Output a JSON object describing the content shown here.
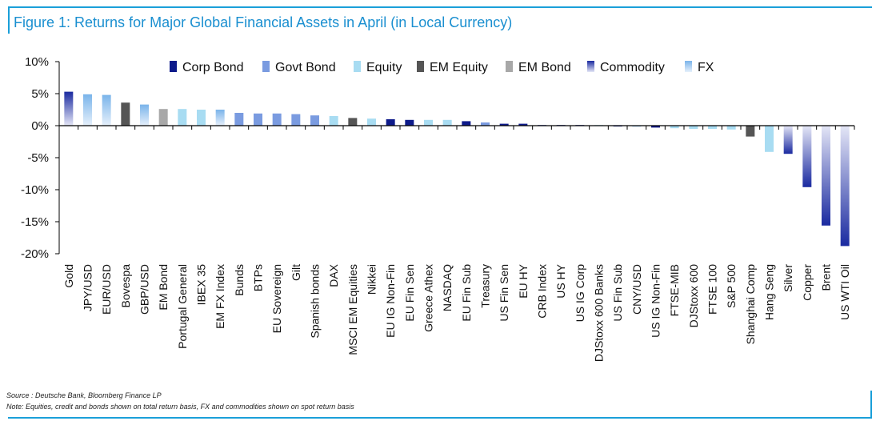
{
  "title": "Figure 1: Returns for Major Global Financial Assets in April (in Local Currency)",
  "source": "Source : Deutsche Bank, Bloomberg Finance LP",
  "note": "Note: Equities, credit and bonds shown on total return basis, FX and commodities shown on spot return basis",
  "colors": {
    "Corp Bond": "#0d1a8a",
    "Govt Bond": "#7a9be0",
    "Equity": "#a8dcf2",
    "EM Equity": "#555555",
    "EM Bond": "#a8a8a8",
    "Commodity": "#1a2aa0",
    "FX": "#7ab4ea"
  },
  "chart_data": {
    "type": "bar",
    "title": "Figure 1: Returns for Major Global Financial Assets in April (in Local Currency)",
    "ylim": [
      -20,
      10
    ],
    "yticks": [
      10,
      5,
      0,
      -5,
      -10,
      -15,
      -20
    ],
    "ytick_labels": [
      "10%",
      "5%",
      "0%",
      "-5%",
      "-10%",
      "-15%",
      "-20%"
    ],
    "legend": [
      "Corp Bond",
      "Govt Bond",
      "Equity",
      "EM Equity",
      "EM Bond",
      "Commodity",
      "FX"
    ],
    "legend_position": "top",
    "categories": [
      "Gold",
      "JPY/USD",
      "EUR/USD",
      "Bovespa",
      "GBP/USD",
      "EM Bond",
      "Portugal General",
      "IBEX 35",
      "EM FX Index",
      "Bunds",
      "BTPs",
      "EU Sovereign",
      "Gilt",
      "Spanish bonds",
      "DAX",
      "MSCI EM Equities",
      "Nikkei",
      "EU IG Non-Fin",
      "EU Fin Sen",
      "Greece Athex",
      "NASDAQ",
      "EU Fin Sub",
      "Treasury",
      "US Fin Sen",
      "EU HY",
      "CRB Index",
      "US HY",
      "US IG Corp",
      "DJStoxx 600 Banks",
      "US Fin Sub",
      "CNY/USD",
      "US IG Non-Fin",
      "FTSE-MIB",
      "DJStoxx 600",
      "FTSE 100",
      "S&P 500",
      "Shanghai Comp",
      "Hang Seng",
      "Silver",
      "Copper",
      "Brent",
      "US WTI Oil"
    ],
    "values": [
      5.3,
      4.9,
      4.8,
      3.6,
      3.3,
      2.6,
      2.6,
      2.5,
      2.5,
      2.0,
      1.9,
      1.9,
      1.8,
      1.6,
      1.5,
      1.2,
      1.1,
      1.0,
      0.9,
      0.9,
      0.9,
      0.7,
      0.5,
      0.3,
      0.3,
      0.1,
      0.1,
      0.1,
      0.1,
      -0.1,
      -0.2,
      -0.3,
      -0.4,
      -0.5,
      -0.5,
      -0.6,
      -1.7,
      -4.1,
      -4.4,
      -9.6,
      -15.6,
      -18.8
    ],
    "asset_class": [
      "Commodity",
      "FX",
      "FX",
      "EM Equity",
      "FX",
      "EM Bond",
      "Equity",
      "Equity",
      "FX",
      "Govt Bond",
      "Govt Bond",
      "Govt Bond",
      "Govt Bond",
      "Govt Bond",
      "Equity",
      "EM Equity",
      "Equity",
      "Corp Bond",
      "Corp Bond",
      "Equity",
      "Equity",
      "Corp Bond",
      "Govt Bond",
      "Corp Bond",
      "Corp Bond",
      "Commodity",
      "Corp Bond",
      "Corp Bond",
      "Equity",
      "Corp Bond",
      "FX",
      "Corp Bond",
      "Equity",
      "Equity",
      "Equity",
      "Equity",
      "EM Equity",
      "Equity",
      "Commodity",
      "Commodity",
      "Commodity",
      "Commodity"
    ]
  }
}
